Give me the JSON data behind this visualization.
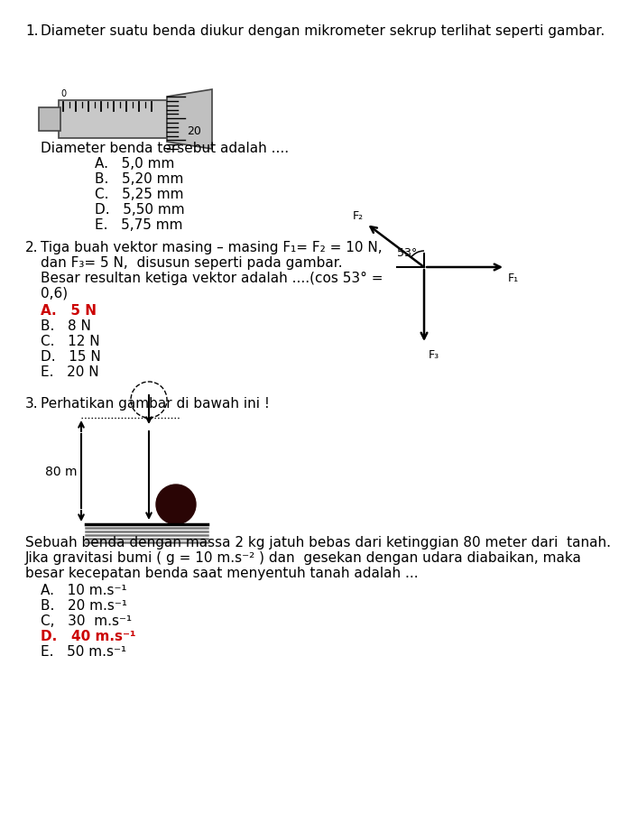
{
  "bg_color": "#ffffff",
  "text_color": "#000000",
  "red_color": "#cc0000",
  "q1_number": "1.",
  "q1_text": "Diameter suatu benda diukur dengan mikrometer sekrup terlihat seperti gambar.",
  "q1_sub": "Diameter benda tersebut adalah ....",
  "q1_options": [
    "A.   5,0 mm",
    "B.   5,20 mm",
    "C.   5,25 mm",
    "D.   5,50 mm",
    "E.   5,75 mm"
  ],
  "q1_answer_idx": -1,
  "q2_number": "2.",
  "q2_line1": "Tiga buah vektor masing – masing F₁= F₂ = 10 N,",
  "q2_line2": "dan F₃= 5 N,  disusun seperti pada gambar.",
  "q2_line3": "Besar resultan ketiga vektor adalah ....(cos 53° =",
  "q2_line4": "0,6)",
  "q2_options": [
    "A.   5 N",
    "B.   8 N",
    "C.   12 N",
    "D.   15 N",
    "E.   20 N"
  ],
  "q2_answer_idx": 0,
  "q3_number": "3.",
  "q3_text": "Perhatikan gambar di bawah ini !",
  "q3_body1": "Sebuah benda dengan massa 2 kg jatuh bebas dari ketinggian 80 meter dari  tanah.",
  "q3_body2": "Jika gravitasi bumi ( g = 10 m.s⁻² ) dan  gesekan dengan udara diabaikan, maka",
  "q3_body3": "besar kecepatan benda saat menyentuh tanah adalah ...",
  "q3_options": [
    "A.   10 m.s⁻¹",
    "B.   20 m.s⁻¹",
    "C,   30  m.s⁻¹",
    "D.   40 m.s⁻¹",
    "E.   50 m.s⁻¹"
  ],
  "q3_answer_idx": 3
}
